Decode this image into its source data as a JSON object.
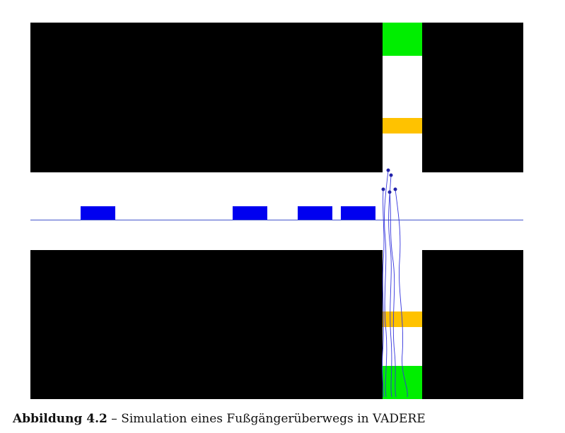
{
  "figure": {
    "caption_label": "Abbildung 4.2",
    "caption_separator": " – ",
    "caption_text": "Simulation eines Fußgängerüberwegs in VADERE"
  },
  "colors": {
    "obstacle": "#000000",
    "source": "#00ee00",
    "target": "#ffc200",
    "vehicle": "#0000f0",
    "trajectory": "#3333dd",
    "pedestrian": "#2222aa",
    "lane_line": "#4455cc",
    "background": "#ffffff"
  },
  "elements": {
    "obstacles": [
      "upper-left-block",
      "upper-right-block",
      "lower-left-block",
      "lower-right-block"
    ],
    "sources": [
      "top-source",
      "bottom-source"
    ],
    "targets": [
      "upper-target",
      "lower-target"
    ],
    "vehicle_count": 4,
    "pedestrian_count": 5
  }
}
